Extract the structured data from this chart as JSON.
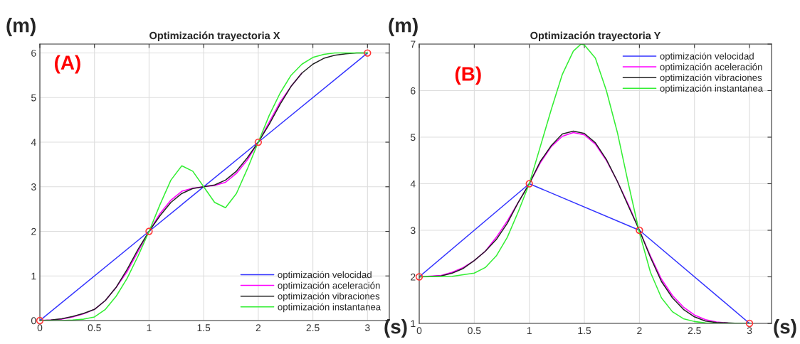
{
  "chart_data": [
    {
      "type": "line",
      "title": "Optimización trayectoria X",
      "xlim": [
        0,
        3.2
      ],
      "ylim": [
        0,
        6.2
      ],
      "xticks": [
        0,
        0.5,
        1,
        1.5,
        2,
        2.5,
        3
      ],
      "yticks": [
        0,
        1,
        2,
        3,
        4,
        5,
        6
      ],
      "grid": true,
      "legend": "bottom right",
      "annotations": [
        "(A)",
        "(m)",
        "(s)"
      ],
      "series": [
        {
          "name": "optimización velocidad",
          "color": "#3333ff",
          "x": [
            0,
            1,
            2,
            3
          ],
          "values": [
            0,
            2,
            4,
            6
          ]
        },
        {
          "name": "optimización aceleración",
          "color": "#ff00ff",
          "x": [
            0,
            0.1,
            0.2,
            0.3,
            0.4,
            0.5,
            0.6,
            0.7,
            0.8,
            0.9,
            1.0,
            1.1,
            1.2,
            1.3,
            1.4,
            1.5,
            1.6,
            1.7,
            1.8,
            1.9,
            2.0,
            2.1,
            2.2,
            2.3,
            2.4
          ],
          "values": [
            0,
            0.01,
            0.03,
            0.08,
            0.15,
            0.25,
            0.45,
            0.75,
            1.1,
            1.55,
            2.0,
            2.4,
            2.7,
            2.9,
            2.97,
            3.0,
            3.03,
            3.1,
            3.3,
            3.6,
            4.0,
            4.45,
            4.9,
            5.25,
            5.55
          ]
        },
        {
          "name": "optimización vibraciones",
          "color": "#222222",
          "x": [
            0,
            0.1,
            0.2,
            0.3,
            0.4,
            0.5,
            0.6,
            0.7,
            0.8,
            0.9,
            1.0,
            1.1,
            1.2,
            1.3,
            1.4,
            1.5,
            1.6,
            1.7,
            1.8,
            1.9,
            2.0,
            2.1,
            2.2,
            2.3,
            2.4,
            2.5,
            2.6,
            2.7,
            2.8,
            2.9,
            3.0
          ],
          "values": [
            0,
            0.01,
            0.04,
            0.09,
            0.16,
            0.25,
            0.45,
            0.75,
            1.15,
            1.6,
            2.0,
            2.35,
            2.65,
            2.85,
            2.96,
            3.0,
            3.04,
            3.15,
            3.35,
            3.65,
            4.0,
            4.4,
            4.85,
            5.25,
            5.55,
            5.75,
            5.88,
            5.95,
            5.98,
            6.0,
            6.0
          ]
        },
        {
          "name": "optimización instantanea",
          "color": "#33ee33",
          "x": [
            0,
            0.2,
            0.3,
            0.4,
            0.5,
            0.6,
            0.7,
            0.8,
            0.9,
            1.0,
            1.1,
            1.2,
            1.3,
            1.4,
            1.5,
            1.6,
            1.7,
            1.8,
            1.9,
            2.0,
            2.1,
            2.2,
            2.3,
            2.4,
            2.5,
            2.6,
            2.7,
            3.0
          ],
          "values": [
            0,
            0.0,
            0.01,
            0.03,
            0.08,
            0.25,
            0.55,
            0.95,
            1.45,
            2.0,
            2.6,
            3.15,
            3.47,
            3.35,
            3.0,
            2.65,
            2.53,
            2.85,
            3.4,
            4.0,
            4.6,
            5.1,
            5.5,
            5.75,
            5.9,
            5.97,
            6.0,
            6.0
          ]
        },
        {
          "type": "scatter",
          "color": "#ff3333",
          "marker": "circle",
          "x": [
            0,
            1,
            2,
            3
          ],
          "values": [
            0,
            2,
            4,
            6
          ]
        }
      ]
    },
    {
      "type": "line",
      "title": "Optimización trayectoria Y",
      "xlim": [
        0,
        3.2
      ],
      "ylim": [
        1,
        7
      ],
      "xticks": [
        0,
        0.5,
        1,
        1.5,
        2,
        2.5,
        3
      ],
      "yticks": [
        1,
        2,
        3,
        4,
        5,
        6,
        7
      ],
      "grid": true,
      "legend": "top right",
      "annotations": [
        "(B)",
        "(m)",
        "(s)"
      ],
      "series": [
        {
          "name": "optimización velocidad",
          "color": "#3333ff",
          "x": [
            0,
            1,
            2,
            3
          ],
          "values": [
            2,
            4,
            3,
            1
          ]
        },
        {
          "name": "optimización aceleración",
          "color": "#ff00ff",
          "x": [
            0,
            0.2,
            0.3,
            0.4,
            0.5,
            0.6,
            0.7,
            0.8,
            0.9,
            1.0,
            1.1,
            1.2,
            1.3,
            1.4,
            1.5,
            1.6,
            1.7,
            1.8,
            1.9,
            2.0,
            2.1,
            2.2,
            2.3,
            2.4,
            2.5,
            2.6,
            2.7,
            2.8
          ],
          "values": [
            2,
            2.03,
            2.1,
            2.2,
            2.35,
            2.55,
            2.85,
            3.2,
            3.6,
            4.0,
            4.45,
            4.8,
            5.02,
            5.1,
            5.05,
            4.85,
            4.5,
            4.05,
            3.55,
            3.0,
            2.45,
            1.95,
            1.6,
            1.35,
            1.18,
            1.08,
            1.03,
            1.01
          ]
        },
        {
          "name": "optimización vibraciones",
          "color": "#222222",
          "x": [
            0,
            0.2,
            0.3,
            0.4,
            0.5,
            0.6,
            0.7,
            0.8,
            0.9,
            1.0,
            1.1,
            1.2,
            1.3,
            1.4,
            1.5,
            1.6,
            1.7,
            1.8,
            1.9,
            2.0,
            2.1,
            2.2,
            2.3,
            2.4,
            2.5,
            2.6,
            2.7,
            2.8,
            2.9,
            3.0
          ],
          "values": [
            2,
            2.02,
            2.08,
            2.18,
            2.35,
            2.55,
            2.8,
            3.15,
            3.6,
            4.0,
            4.48,
            4.82,
            5.07,
            5.13,
            5.08,
            4.88,
            4.52,
            4.05,
            3.52,
            3.0,
            2.42,
            1.9,
            1.55,
            1.3,
            1.14,
            1.05,
            1.02,
            1.01,
            1.0,
            1.0
          ]
        },
        {
          "name": "optimización instantanea",
          "color": "#33ee33",
          "x": [
            0,
            0.3,
            0.5,
            0.6,
            0.7,
            0.8,
            0.9,
            1.0,
            1.1,
            1.2,
            1.3,
            1.4,
            1.47,
            1.5,
            1.6,
            1.7,
            1.8,
            1.9,
            2.0,
            2.1,
            2.2,
            2.3,
            2.4,
            2.5,
            2.6,
            2.7,
            3.0
          ],
          "values": [
            2,
            2.01,
            2.08,
            2.2,
            2.45,
            2.85,
            3.4,
            4.0,
            4.8,
            5.6,
            6.35,
            6.85,
            7.0,
            6.98,
            6.7,
            6.0,
            5.1,
            4.0,
            2.95,
            2.1,
            1.55,
            1.25,
            1.1,
            1.04,
            1.01,
            1.0,
            1.0
          ]
        },
        {
          "type": "scatter",
          "color": "#ff3333",
          "marker": "circle",
          "x": [
            0,
            1,
            2,
            3
          ],
          "values": [
            2,
            4,
            3,
            1
          ]
        }
      ]
    }
  ]
}
